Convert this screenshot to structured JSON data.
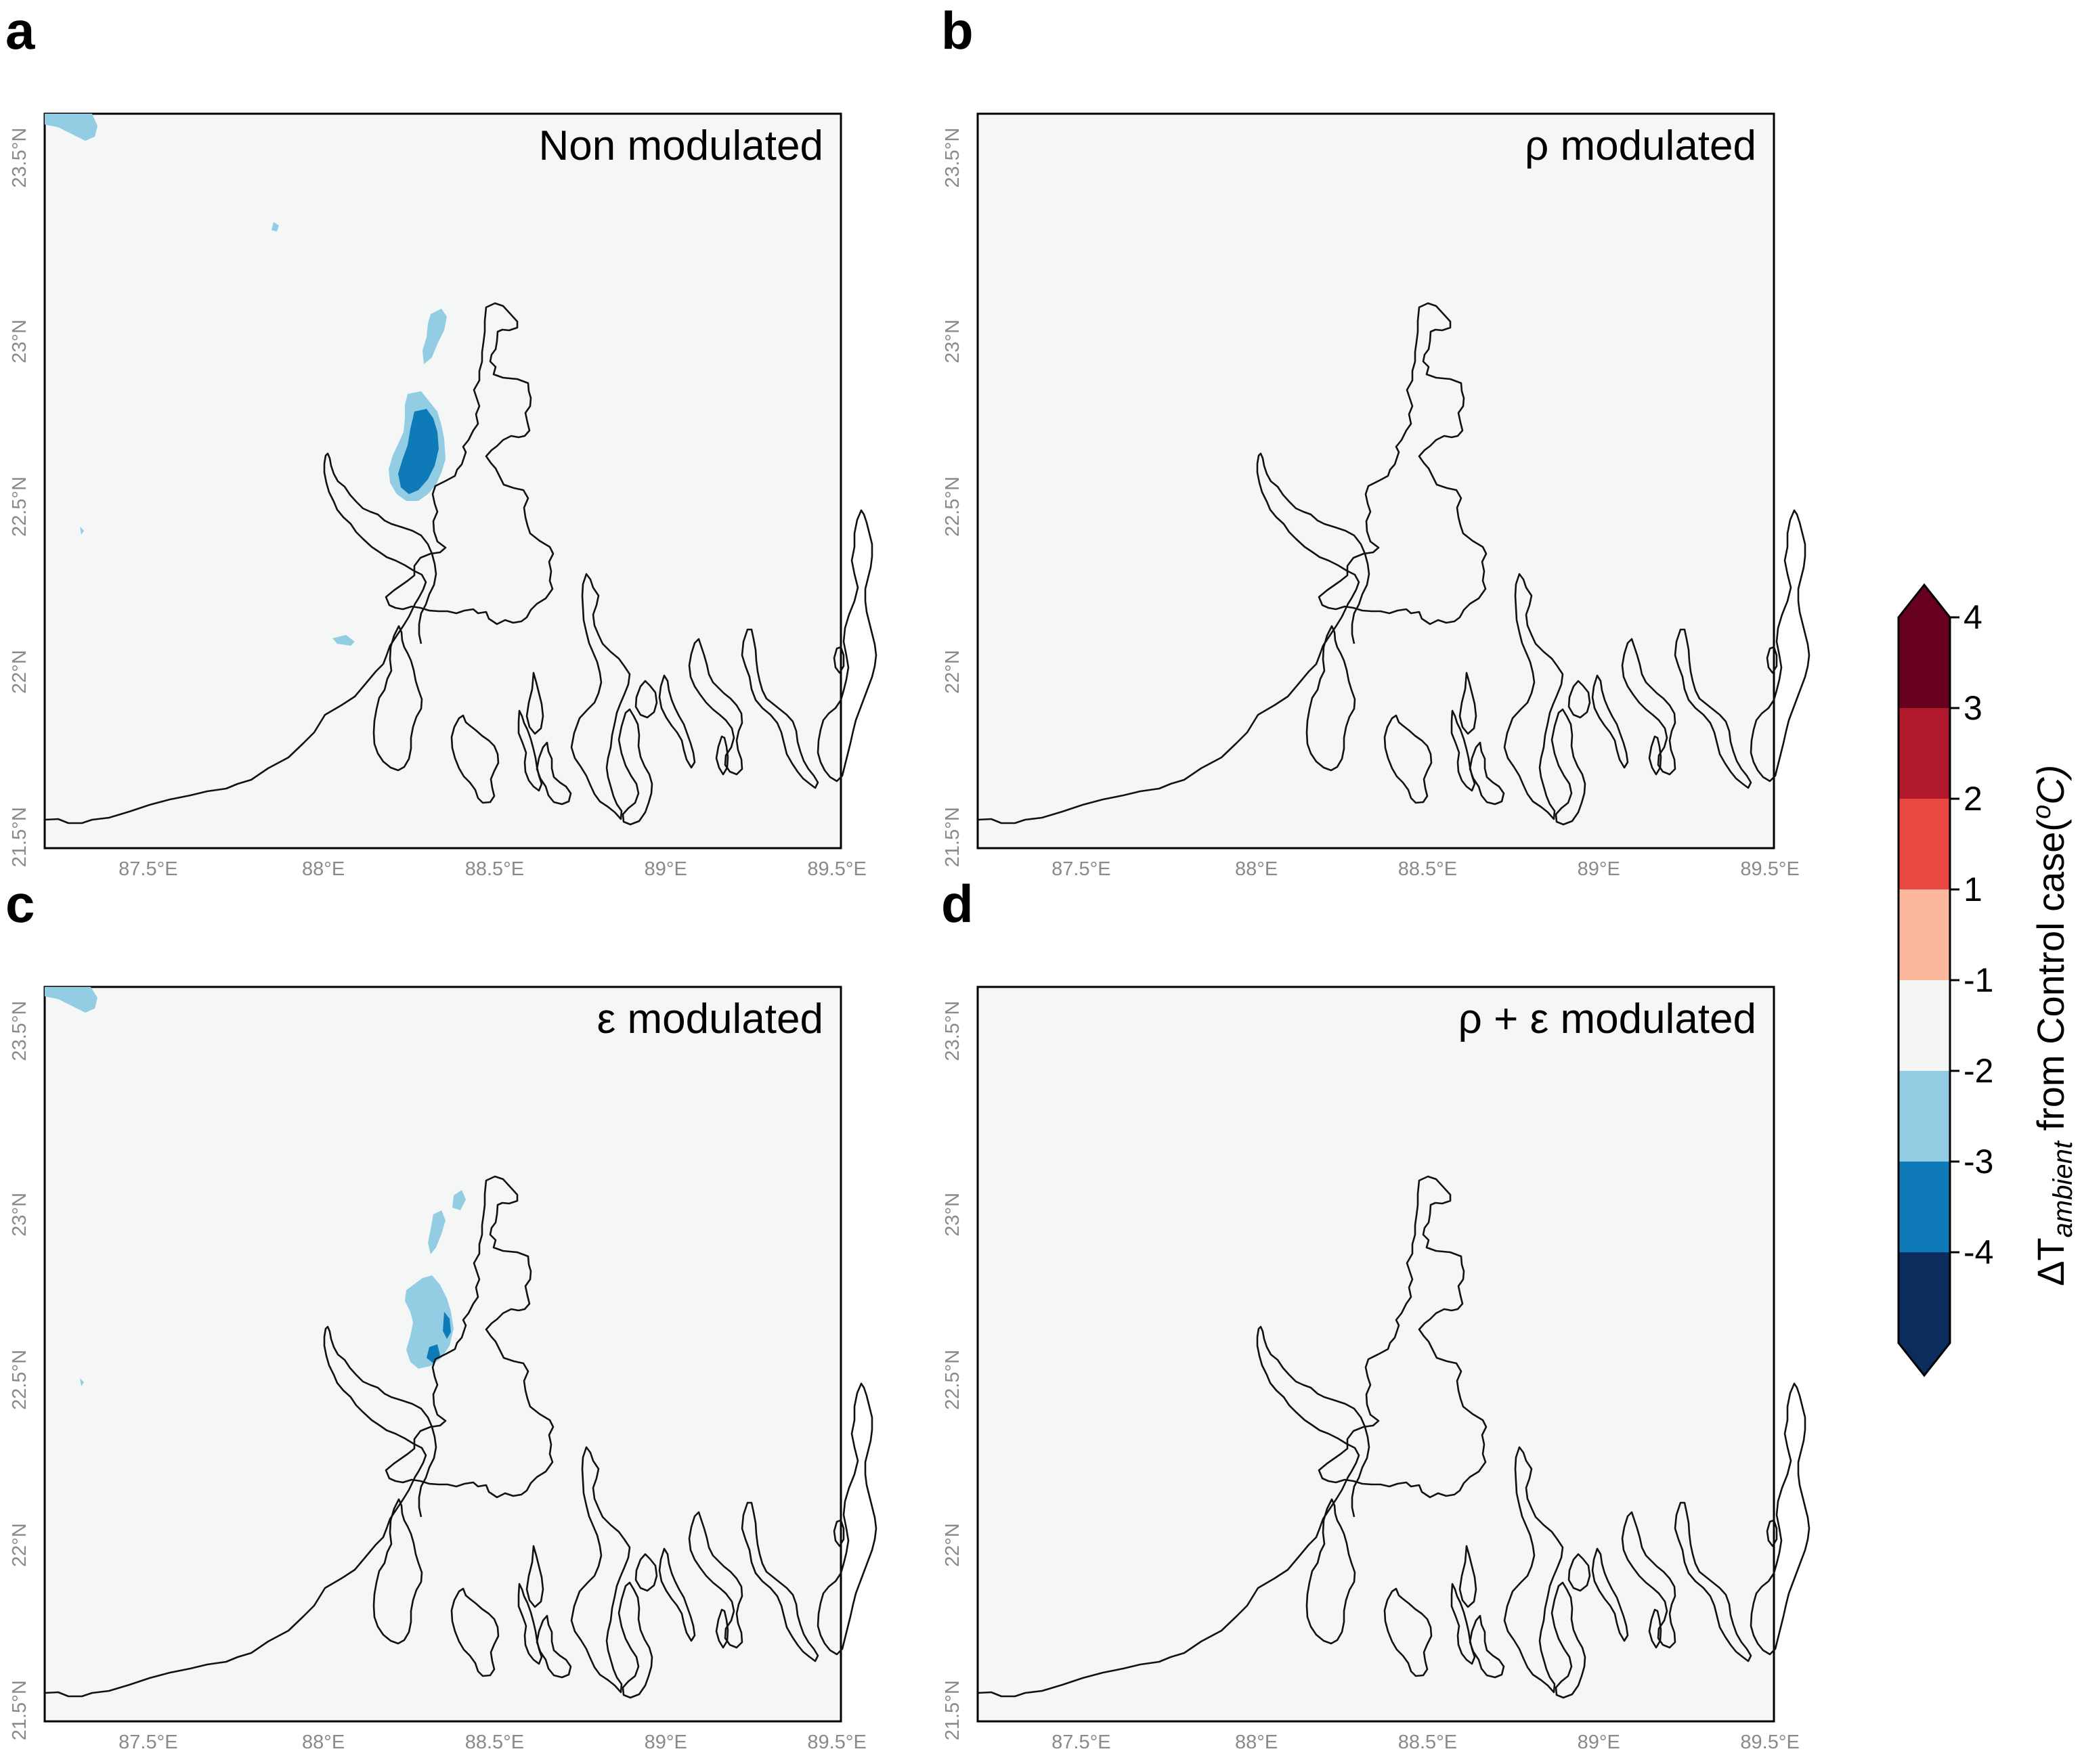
{
  "figure": {
    "panels": [
      {
        "letter": "a",
        "title": "Non modulated",
        "anomaly": "strong"
      },
      {
        "letter": "b",
        "title": "ρ modulated",
        "anomaly": "none"
      },
      {
        "letter": "c",
        "title": "ε modulated",
        "anomaly": "moderate"
      },
      {
        "letter": "d",
        "title": "ρ + ε modulated",
        "anomaly": "none"
      }
    ],
    "x_ticks": [
      "87.5°E",
      "88°E",
      "88.5°E",
      "89°E",
      "89.5°E"
    ],
    "y_ticks": [
      "21.5°N",
      "22°N",
      "22.5°N",
      "23°N",
      "23.5°N"
    ],
    "colorbar": {
      "label_prefix": "ΔT",
      "label_subscript": "ambient",
      "label_suffix": " from Control case(",
      "label_unit_sup": "o",
      "label_unit": "C)",
      "ticks": [
        "4",
        "3",
        "2",
        "1",
        "-1",
        "-2",
        "-3",
        "-4"
      ],
      "colors": [
        "#67001f",
        "#b2182b",
        "#e8483f",
        "#fbb89c",
        "#f5f6f4",
        "#92cde3",
        "#0f7ab8",
        "#0b2d5e"
      ],
      "over_color": "#67001f",
      "under_color": "#0b2d5e"
    },
    "colors": {
      "background": "#f5f7f6",
      "light_blue": "#92cde3",
      "mid_blue": "#0f7ab8",
      "coastline": "#111111"
    }
  }
}
